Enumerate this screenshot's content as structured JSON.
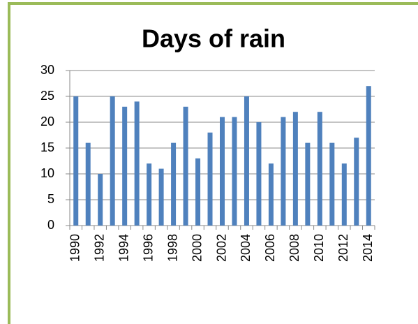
{
  "chart_data": {
    "type": "bar",
    "title": "Days of rain",
    "categories": [
      "1990",
      null,
      "1992",
      null,
      "1994",
      null,
      "1996",
      null,
      "1998",
      null,
      "2000",
      null,
      "2002",
      null,
      "2004",
      null,
      "2006",
      null,
      "2008",
      null,
      "2010",
      null,
      "2012",
      null,
      "2014"
    ],
    "values": [
      25,
      16,
      10,
      25,
      23,
      24,
      12,
      11,
      16,
      23,
      13,
      18,
      21,
      21,
      25,
      20,
      12,
      21,
      22,
      16,
      22,
      16,
      12,
      17,
      27
    ],
    "color": "#4f81bd",
    "ylim": [
      0,
      30
    ],
    "yticks": [
      0,
      5,
      10,
      15,
      20,
      25,
      30
    ],
    "grid": true
  }
}
